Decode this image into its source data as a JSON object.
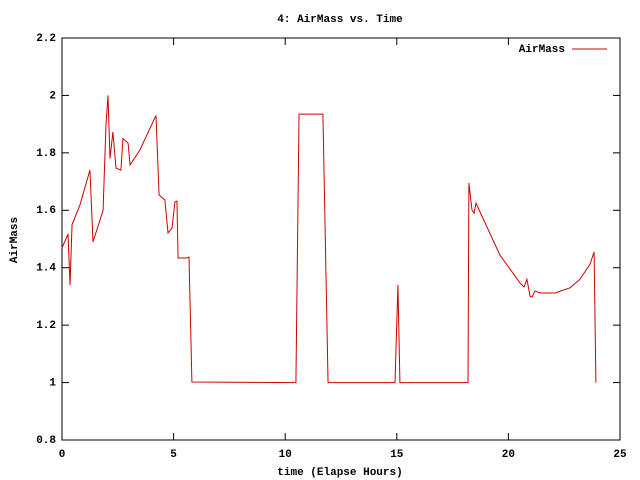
{
  "chart_data": {
    "type": "line",
    "title": "4: AirMass vs. Time",
    "xlabel": "time (Elapse Hours)",
    "ylabel": "AirMass",
    "xlim": [
      0,
      25
    ],
    "xticks": [
      0,
      5,
      10,
      15,
      20,
      25
    ],
    "ylim": [
      0.8,
      2.2
    ],
    "yticks": [
      0.8,
      1,
      1.2,
      1.4,
      1.6,
      1.8,
      2,
      2.2
    ],
    "grid": false,
    "legend": "top-right",
    "series": [
      {
        "name": "AirMass",
        "color": "#cc0000",
        "x": [
          0,
          0.27,
          0.36,
          0.45,
          0.81,
          1.25,
          1.39,
          1.84,
          1.97,
          2.06,
          2.15,
          2.28,
          2.42,
          2.64,
          2.73,
          2.96,
          3.05,
          3.49,
          3.76,
          4.21,
          4.35,
          4.61,
          4.75,
          4.93,
          5.06,
          5.15,
          5.2,
          5.56,
          5.69,
          5.82,
          10.48,
          10.62,
          11.69,
          11.92,
          14.92,
          15.05,
          15.14,
          15.28,
          18.19,
          18.23,
          18.37,
          18.46,
          18.55,
          18.73,
          19.62,
          20.52,
          20.7,
          20.83,
          20.97,
          21.06,
          21.19,
          21.42,
          22.09,
          22.76,
          23.21,
          23.66,
          23.84,
          23.92
        ],
        "values": [
          1.469,
          1.517,
          1.34,
          1.55,
          1.62,
          1.74,
          1.49,
          1.6,
          1.897,
          2.0,
          1.78,
          1.873,
          1.747,
          1.74,
          1.85,
          1.834,
          1.758,
          1.81,
          1.855,
          1.93,
          1.653,
          1.636,
          1.521,
          1.538,
          1.629,
          1.632,
          1.434,
          1.434,
          1.437,
          1.002,
          1.0,
          1.935,
          1.935,
          1.0,
          1.0,
          1.34,
          1.0,
          1.0,
          1.0,
          1.695,
          1.601,
          1.59,
          1.625,
          1.594,
          1.444,
          1.347,
          1.333,
          1.36,
          1.3,
          1.298,
          1.319,
          1.312,
          1.312,
          1.33,
          1.36,
          1.413,
          1.455,
          1.0
        ]
      }
    ]
  }
}
